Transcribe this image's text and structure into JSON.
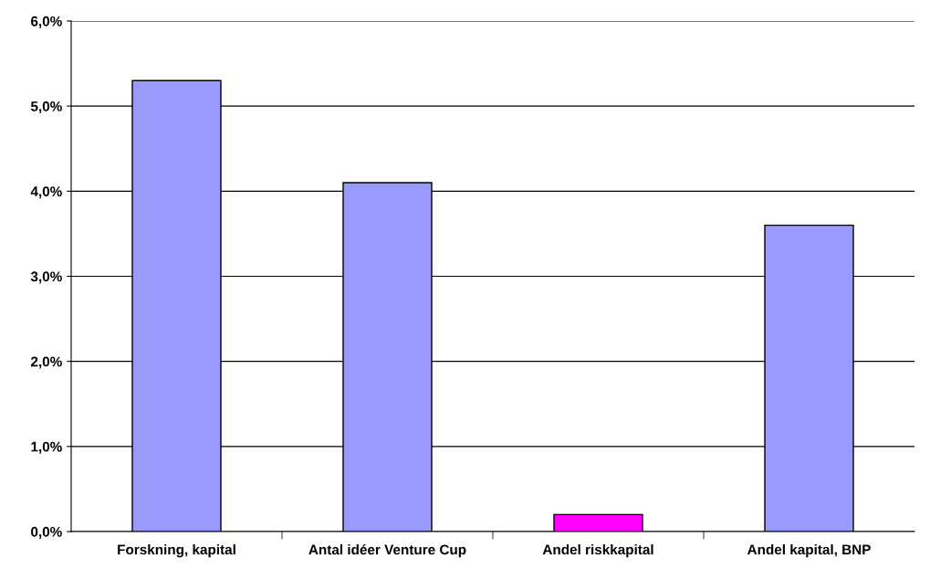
{
  "chart_data": {
    "type": "bar",
    "categories": [
      "Forskning, kapital",
      "Antal idéer Venture Cup",
      "Andel riskkapital",
      "Andel kapital, BNP"
    ],
    "values": [
      5.3,
      4.1,
      0.2,
      3.6
    ],
    "colors": [
      "#9999ff",
      "#9999ff",
      "#ff00ff",
      "#9999ff"
    ],
    "ylim": [
      0,
      6
    ],
    "yticks": [
      {
        "value": 0,
        "label": "0,0%"
      },
      {
        "value": 1,
        "label": "1,0%"
      },
      {
        "value": 2,
        "label": "2,0%"
      },
      {
        "value": 3,
        "label": "3,0%"
      },
      {
        "value": 4,
        "label": "4,0%"
      },
      {
        "value": 5,
        "label": "5,0%"
      },
      {
        "value": 6,
        "label": "6,0%"
      }
    ],
    "grid": "y",
    "legend": false
  }
}
